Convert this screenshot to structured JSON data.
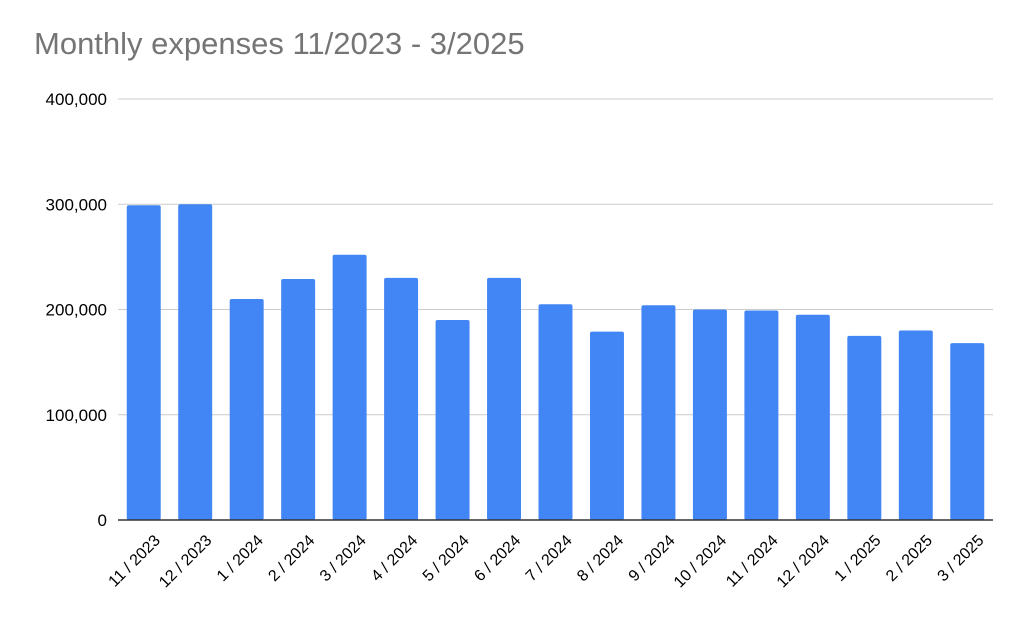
{
  "chart_data": {
    "type": "bar",
    "title": "Monthly expenses 11/2023 - 3/2025",
    "xlabel": "",
    "ylabel": "",
    "ylim": [
      0,
      400000
    ],
    "yticks": [
      0,
      100000,
      200000,
      300000,
      400000
    ],
    "ytick_labels": [
      "0",
      "100,000",
      "200,000",
      "300,000",
      "400,000"
    ],
    "categories": [
      "11 / 2023",
      "12 / 2023",
      "1 / 2024",
      "2 / 2024",
      "3 / 2024",
      "4 / 2024",
      "5 / 2024",
      "6 / 2024",
      "7 / 2024",
      "8 / 2024",
      "9 / 2024",
      "10 / 2024",
      "11 / 2024",
      "12 / 2024",
      "1 / 2025",
      "2 / 2025",
      "3 / 2025"
    ],
    "values": [
      299000,
      300000,
      210000,
      229000,
      252000,
      230000,
      190000,
      230000,
      205000,
      179000,
      204000,
      200000,
      199000,
      195000,
      175000,
      180000,
      168000
    ],
    "grid": true,
    "legend": "none",
    "colors": {
      "bar": "#4285f4",
      "grid": "#cccccc",
      "axis": "#333333"
    }
  }
}
